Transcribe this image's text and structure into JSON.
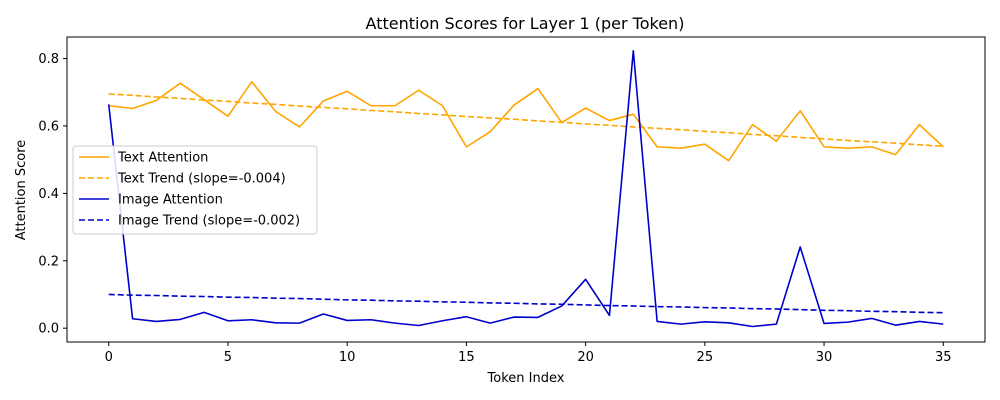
{
  "chart_data": {
    "type": "line",
    "title": "Attention Scores for Layer 1 (per Token)",
    "xlabel": "Token Index",
    "ylabel": "Attention Score",
    "xlim": [
      -1.75,
      36.75
    ],
    "ylim": [
      -0.041,
      0.864
    ],
    "xticks": [
      0,
      5,
      10,
      15,
      20,
      25,
      30,
      35
    ],
    "yticks": [
      0.0,
      0.2,
      0.4,
      0.6,
      0.8
    ],
    "grid": false,
    "legend_position": "center-left",
    "x": [
      0,
      1,
      2,
      3,
      4,
      5,
      6,
      7,
      8,
      9,
      10,
      11,
      12,
      13,
      14,
      15,
      16,
      17,
      18,
      19,
      20,
      21,
      22,
      23,
      24,
      25,
      26,
      27,
      28,
      29,
      30,
      31,
      32,
      33,
      34,
      35
    ],
    "series": [
      {
        "name": "Text Attention",
        "color": "#ffa500",
        "style": "solid",
        "values": [
          0.66,
          0.652,
          0.676,
          0.727,
          0.678,
          0.629,
          0.731,
          0.643,
          0.597,
          0.674,
          0.703,
          0.66,
          0.66,
          0.706,
          0.66,
          0.538,
          0.583,
          0.662,
          0.711,
          0.61,
          0.653,
          0.616,
          0.635,
          0.538,
          0.534,
          0.546,
          0.497,
          0.604,
          0.555,
          0.645,
          0.538,
          0.534,
          0.538,
          0.515,
          0.604,
          0.538
        ]
      },
      {
        "name": "Text Trend (slope=-0.004)",
        "color": "#ffa500",
        "style": "dashed",
        "values": [
          0.695,
          0.691,
          0.686,
          0.682,
          0.677,
          0.673,
          0.668,
          0.664,
          0.659,
          0.655,
          0.651,
          0.646,
          0.642,
          0.637,
          0.633,
          0.628,
          0.624,
          0.62,
          0.615,
          0.611,
          0.606,
          0.602,
          0.597,
          0.593,
          0.589,
          0.584,
          0.58,
          0.575,
          0.571,
          0.566,
          0.562,
          0.557,
          0.553,
          0.549,
          0.544,
          0.54
        ]
      },
      {
        "name": "Image Attention",
        "color": "#0000cd",
        "style": "solid",
        "values": [
          0.664,
          0.028,
          0.02,
          0.026,
          0.047,
          0.022,
          0.025,
          0.016,
          0.015,
          0.042,
          0.023,
          0.025,
          0.015,
          0.008,
          0.022,
          0.034,
          0.015,
          0.033,
          0.032,
          0.066,
          0.145,
          0.038,
          0.823,
          0.02,
          0.012,
          0.019,
          0.016,
          0.005,
          0.012,
          0.241,
          0.014,
          0.018,
          0.029,
          0.009,
          0.02,
          0.012
        ]
      },
      {
        "name": "Image Trend (slope=-0.002)",
        "color": "#0000cd",
        "style": "dashed",
        "values": [
          0.1,
          0.098,
          0.097,
          0.095,
          0.094,
          0.092,
          0.091,
          0.089,
          0.088,
          0.086,
          0.084,
          0.083,
          0.081,
          0.08,
          0.078,
          0.077,
          0.075,
          0.074,
          0.072,
          0.071,
          0.069,
          0.067,
          0.066,
          0.064,
          0.063,
          0.061,
          0.06,
          0.058,
          0.057,
          0.055,
          0.053,
          0.052,
          0.05,
          0.049,
          0.047,
          0.046
        ]
      }
    ]
  }
}
